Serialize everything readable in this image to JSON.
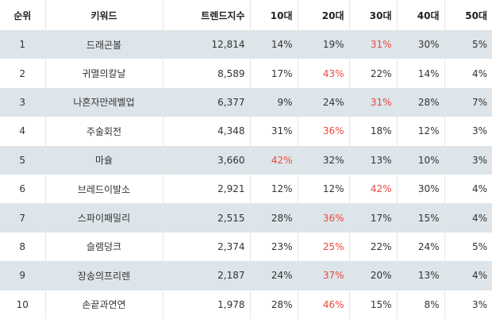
{
  "chart_data": {
    "type": "table",
    "columns": [
      "순위",
      "키워드",
      "트렌드지수",
      "10대",
      "20대",
      "30대",
      "40대",
      "50대"
    ],
    "rows": [
      [
        "1",
        "드래곤볼",
        "12,814",
        "14%",
        "19%",
        "31%",
        "30%",
        "5%"
      ],
      [
        "2",
        "귀멸의칼날",
        "8,589",
        "17%",
        "43%",
        "22%",
        "14%",
        "4%"
      ],
      [
        "3",
        "나혼자만레벨업",
        "6,377",
        "9%",
        "24%",
        "31%",
        "28%",
        "7%"
      ],
      [
        "4",
        "주술회전",
        "4,348",
        "31%",
        "36%",
        "18%",
        "12%",
        "3%"
      ],
      [
        "5",
        "마슐",
        "3,660",
        "42%",
        "32%",
        "13%",
        "10%",
        "3%"
      ],
      [
        "6",
        "브레드이발소",
        "2,921",
        "12%",
        "12%",
        "42%",
        "30%",
        "4%"
      ],
      [
        "7",
        "스파이패밀리",
        "2,515",
        "28%",
        "36%",
        "17%",
        "15%",
        "4%"
      ],
      [
        "8",
        "슬램덩크",
        "2,374",
        "23%",
        "25%",
        "22%",
        "24%",
        "5%"
      ],
      [
        "9",
        "장송의프리렌",
        "2,187",
        "24%",
        "37%",
        "20%",
        "13%",
        "4%"
      ],
      [
        "10",
        "손끝과연연",
        "1,978",
        "28%",
        "46%",
        "15%",
        "8%",
        "3%"
      ]
    ],
    "highlight_column_index": [
      5,
      4,
      5,
      4,
      3,
      5,
      4,
      4,
      4,
      4
    ],
    "colors": {
      "highlight": "#e8483b",
      "alt_row": "#dde5ea"
    }
  }
}
